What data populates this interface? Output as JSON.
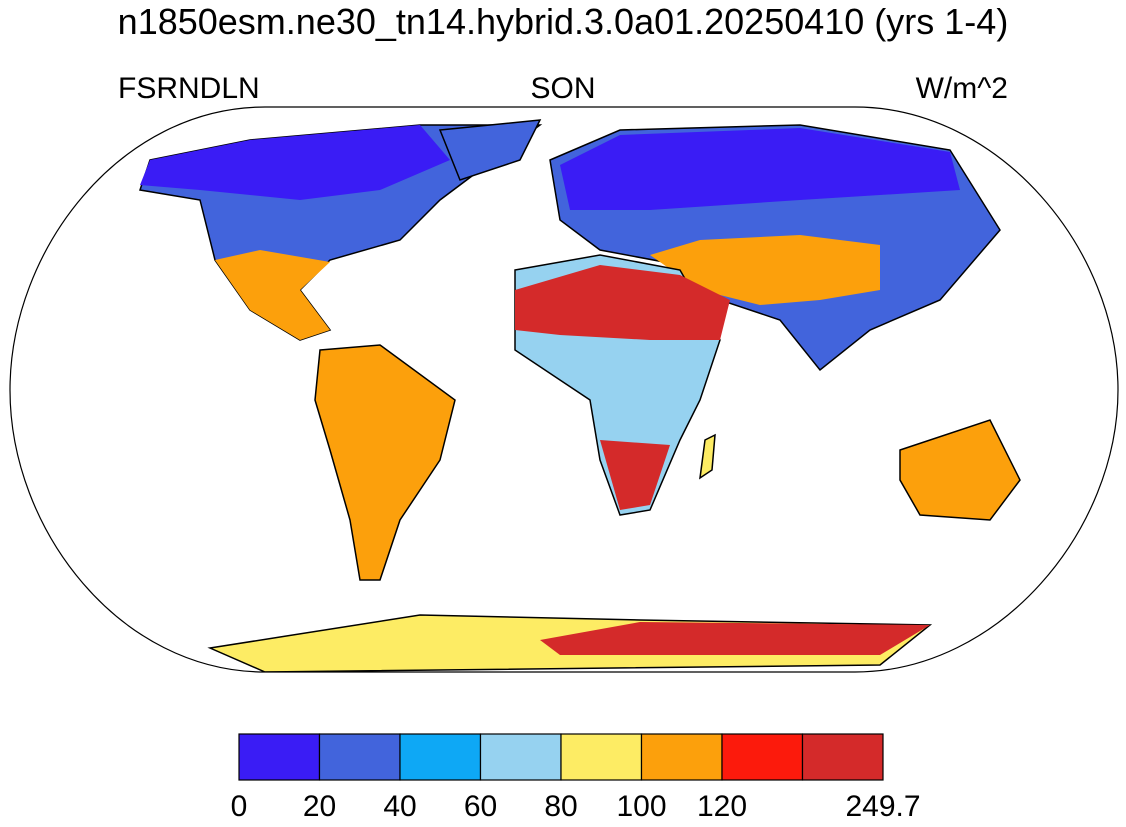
{
  "title": "n1850esm.ne30_tn14.hybrid.3.0a01.20250410 (yrs 1-4)",
  "left_label": "FSRNDLN",
  "center_label": "SON",
  "right_label": "W/m^2",
  "colorbar": {
    "colors": [
      "#3a1cf5",
      "#4264dc",
      "#0ea8f5",
      "#96d2f0",
      "#fdec64",
      "#fca00c",
      "#fc1a0c",
      "#d42a2a"
    ],
    "labels": [
      0,
      20,
      40,
      60,
      80,
      100,
      120,
      null,
      249.7
    ]
  }
}
